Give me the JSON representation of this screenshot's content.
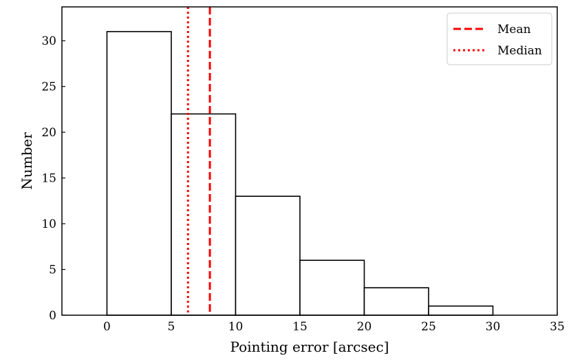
{
  "chart_data": {
    "type": "bar",
    "xlabel": "Pointing error [arcsec]",
    "ylabel": "Number",
    "xlim": [
      -3.5,
      35
    ],
    "ylim": [
      0,
      33.7
    ],
    "xticks": [
      0,
      5,
      10,
      15,
      20,
      25,
      30,
      35
    ],
    "yticks": [
      0,
      5,
      10,
      15,
      20,
      25,
      30
    ],
    "bins": [
      {
        "x0": 0,
        "x1": 5,
        "count": 31
      },
      {
        "x0": 5,
        "x1": 10,
        "count": 22
      },
      {
        "x0": 10,
        "x1": 15,
        "count": 13
      },
      {
        "x0": 15,
        "x1": 20,
        "count": 6
      },
      {
        "x0": 20,
        "x1": 25,
        "count": 3
      },
      {
        "x0": 25,
        "x1": 30,
        "count": 1
      }
    ],
    "reference_lines": [
      {
        "name": "Mean",
        "x": 8.0,
        "style": "dashed",
        "color": "#ff0000"
      },
      {
        "name": "Median",
        "x": 6.3,
        "style": "dotted",
        "color": "#ff0000"
      }
    ],
    "legend": {
      "position": "top-right",
      "entries": [
        "Mean",
        "Median"
      ]
    },
    "grid": false,
    "bar_fill": "#ffffff",
    "bar_edge": "#000000"
  }
}
